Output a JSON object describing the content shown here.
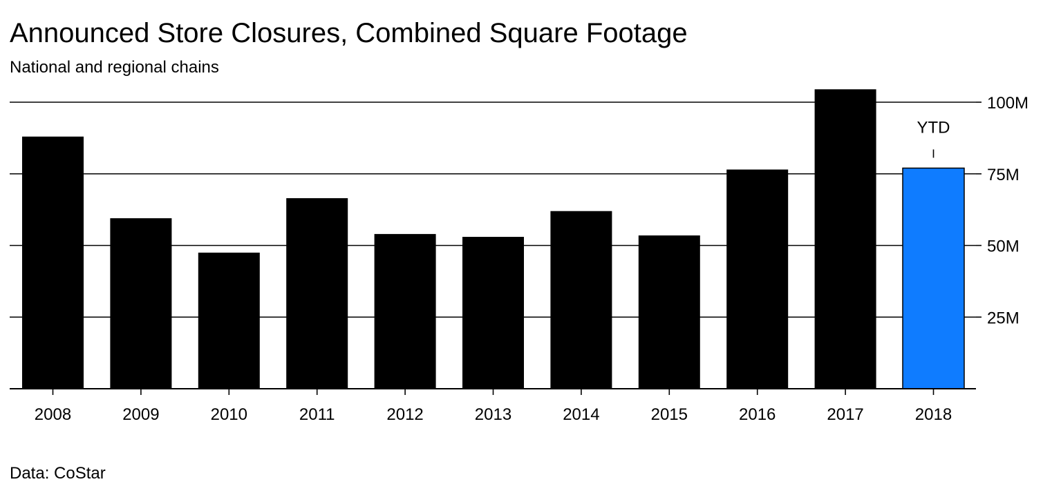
{
  "chart_data": {
    "type": "bar",
    "title": "Announced Store Closures, Combined Square Footage",
    "subtitle": "National and regional chains",
    "source": "Data: CoStar",
    "categories": [
      "2008",
      "2009",
      "2010",
      "2011",
      "2012",
      "2013",
      "2014",
      "2015",
      "2016",
      "2017",
      "2018"
    ],
    "values": [
      88,
      59.5,
      47.5,
      66.5,
      54,
      53,
      62,
      53.5,
      76.5,
      104.5,
      77
    ],
    "units": "M",
    "highlight_index": 10,
    "annotation": {
      "text": "YTD",
      "category": "2018"
    },
    "xlabel": "",
    "ylabel": "",
    "ylim": [
      0,
      100
    ],
    "yticks": [
      {
        "value": 25,
        "label": "25M"
      },
      {
        "value": 50,
        "label": "50M"
      },
      {
        "value": 75,
        "label": "75M"
      },
      {
        "value": 100,
        "label": "100M"
      }
    ],
    "colors": {
      "bar": "#000000",
      "highlight": "#0f7cff",
      "grid": "#000000"
    },
    "grid": true,
    "y_axis_position": "right"
  }
}
